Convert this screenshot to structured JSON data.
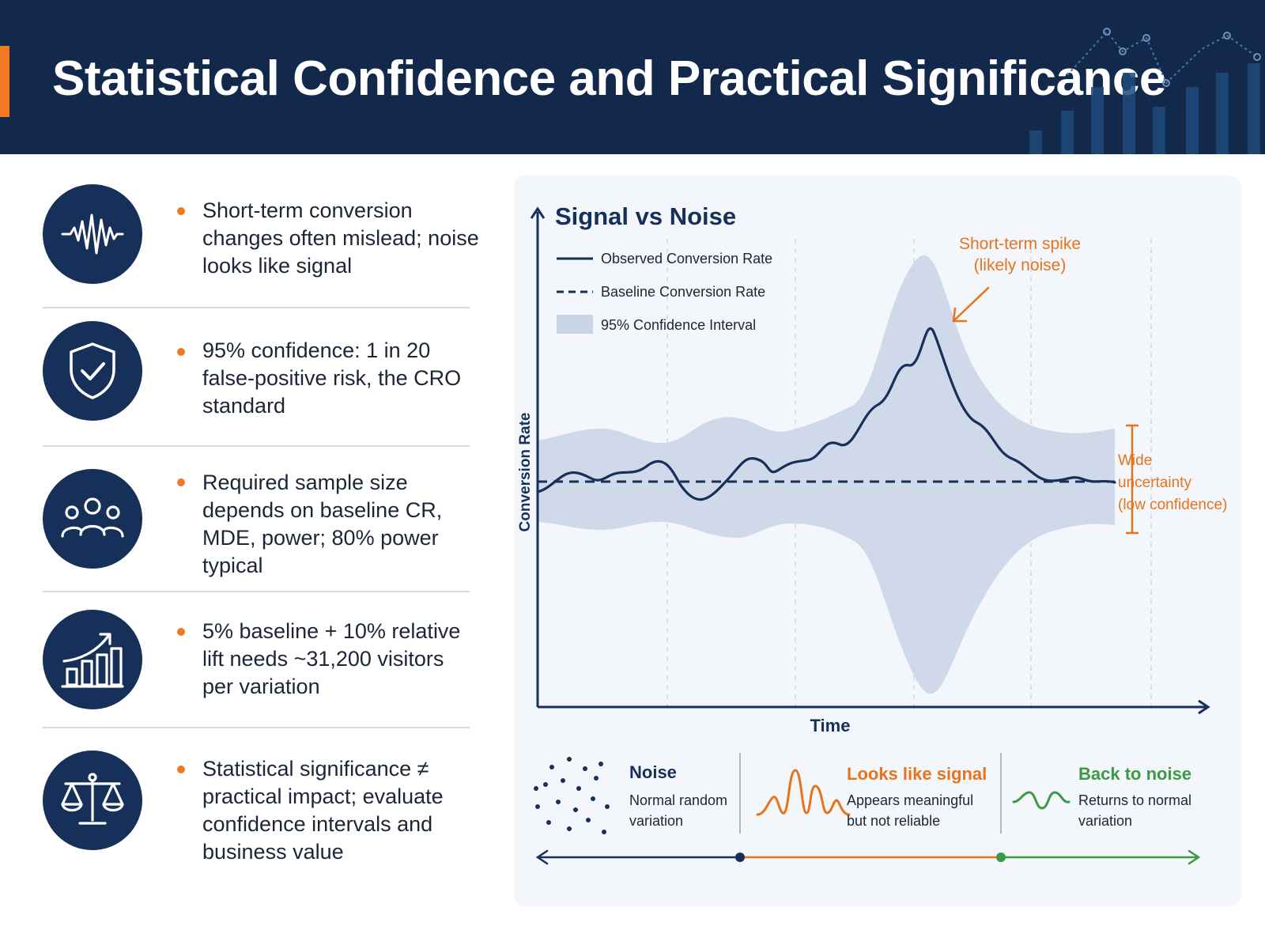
{
  "header": {
    "title": "Statistical Confidence and Practical Significance"
  },
  "points": [
    {
      "icon": "waveform-icon",
      "text": "Short-term conversion changes often mislead; noise looks like signal"
    },
    {
      "icon": "shield-check-icon",
      "text": "95% confidence: 1 in 20 false-positive risk, the CRO standard"
    },
    {
      "icon": "people-group-icon",
      "text": "Required sample size depends on baseline CR, MDE, power; 80% power typical"
    },
    {
      "icon": "bar-chart-up-arrow-icon",
      "text": "5% baseline + 10% relative lift needs ~31,200 visitors per variation"
    },
    {
      "icon": "balance-scale-icon",
      "text": "Statistical significance ≠ practical impact; evaluate confidence intervals and business value"
    }
  ],
  "chart": {
    "title": "Signal vs Noise",
    "x_label": "Time",
    "y_label": "Conversion Rate",
    "legend": {
      "observed": "Observed Conversion Rate",
      "baseline": "Baseline Conversion Rate",
      "interval": "95% Confidence Interval"
    },
    "spike_annotation": {
      "line1": "Short-term spike",
      "line2": "(likely noise)"
    },
    "uncertainty_annotation": {
      "line1": "Wide",
      "line2": "uncertainty",
      "line3": "(low confidence)"
    },
    "colors": {
      "navy": "#16305a",
      "orange": "#e8731c",
      "green": "#3c9a45",
      "band": "#c8d3e4"
    }
  },
  "phases": [
    {
      "icon": "scattered-dots-icon",
      "title": "Noise",
      "line1": "Normal random",
      "line2": "variation"
    },
    {
      "icon": "orange-wave-icon",
      "title": "Looks like signal",
      "line1": "Appears meaningful",
      "line2": "but not reliable"
    },
    {
      "icon": "green-wave-icon",
      "title": "Back to noise",
      "line1": "Returns to normal",
      "line2": "variation"
    }
  ]
}
